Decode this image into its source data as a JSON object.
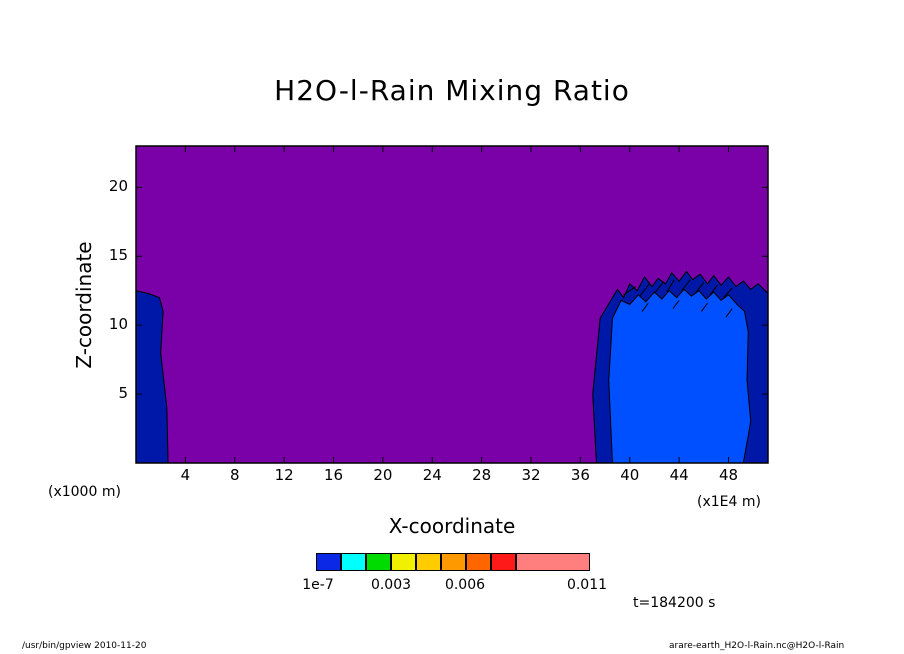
{
  "chart_data": {
    "type": "heatmap",
    "title": "H2O-l-Rain Mixing Ratio",
    "xlabel": "X-coordinate",
    "ylabel": "Z-coordinate",
    "x_unit": "(x1E4 m)",
    "y_unit": "(x1000 m)",
    "xlim": [
      0,
      51.2
    ],
    "ylim": [
      0,
      23
    ],
    "x_ticks": [
      "4",
      "8",
      "12",
      "16",
      "20",
      "24",
      "28",
      "32",
      "36",
      "40",
      "44",
      "48"
    ],
    "y_ticks": [
      "5",
      "10",
      "15",
      "20"
    ],
    "background_color": "#7a00a8",
    "regions": [
      {
        "level": "1e-7",
        "color": "#0018a8",
        "description_x_range": [
          0,
          2.7
        ],
        "z_top": 12.5
      },
      {
        "level": "1e-7",
        "color": "#0018a8",
        "description_x_range": [
          37.5,
          51.2
        ],
        "z_top": 14
      },
      {
        "level": "0.001",
        "color": "#0050ff",
        "description_x_range": [
          38.5,
          50
        ],
        "z_top": 13
      }
    ],
    "colorbar": {
      "colors": [
        "#0a28e6",
        "#00ffff",
        "#00dc00",
        "#f0f000",
        "#ffcc00",
        "#ff9900",
        "#ff6600",
        "#ff1a1a",
        "#ff7f7f"
      ],
      "labels": [
        "1e-7",
        "0.003",
        "0.006",
        "0.011"
      ]
    },
    "time_label": "t=184200 s",
    "footer_left": "/usr/bin/gpview  2010-11-20",
    "footer_right": "arare-earth_H2O-l-Rain.nc@H2O-l-Rain"
  }
}
